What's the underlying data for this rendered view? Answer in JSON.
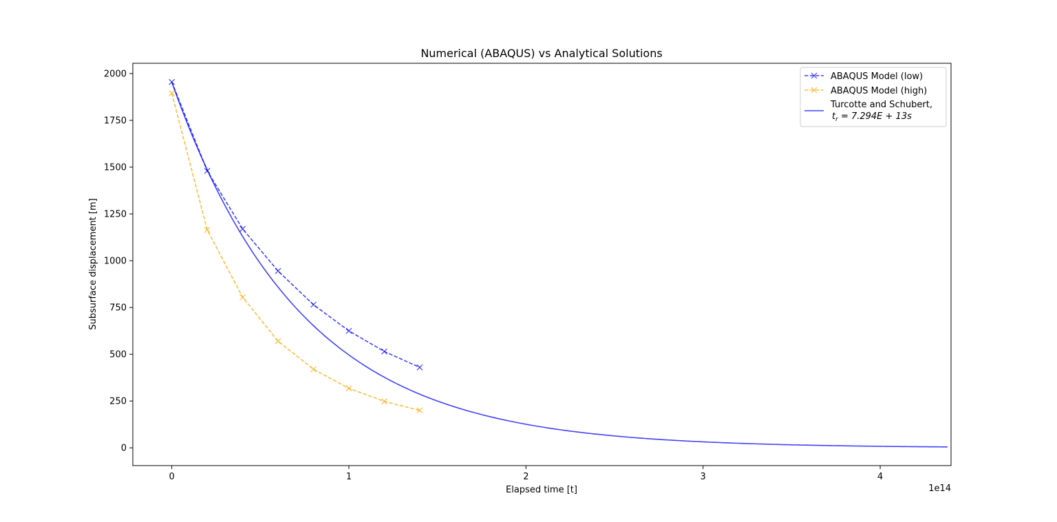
{
  "chart_data": {
    "type": "line",
    "title": "Numerical (ABAQUS) vs Analytical Solutions",
    "xlabel": "Elapsed time [t]",
    "ylabel": "Subsurface displacement [m]",
    "x_offset_label": "1e14",
    "xlim": [
      -0.22,
      4.4
    ],
    "ylim": [
      -95,
      2055
    ],
    "x_ticks": [
      0,
      1,
      2,
      3,
      4
    ],
    "x_tick_labels": [
      "0",
      "1",
      "2",
      "3",
      "4"
    ],
    "y_ticks": [
      0,
      250,
      500,
      750,
      1000,
      1250,
      1500,
      1750,
      2000
    ],
    "y_tick_labels": [
      "0",
      "250",
      "500",
      "750",
      "1000",
      "1250",
      "1500",
      "1750",
      "2000"
    ],
    "grid": false,
    "legend_position": "top-right",
    "series": [
      {
        "name": "ABAQUS Model (low)",
        "color": "#0000ff",
        "style": "dashed",
        "marker": "x",
        "x": [
          0,
          0.2,
          0.4,
          0.6,
          0.8,
          1.0,
          1.2,
          1.4
        ],
        "y": [
          1955,
          1480,
          1170,
          945,
          765,
          625,
          515,
          430
        ]
      },
      {
        "name": "ABAQUS Model (high)",
        "color": "#ffa500",
        "style": "dashed",
        "marker": "x",
        "x": [
          0,
          0.2,
          0.4,
          0.6,
          0.8,
          1.0,
          1.2,
          1.4
        ],
        "y": [
          1895,
          1165,
          805,
          570,
          420,
          318,
          248,
          200
        ]
      },
      {
        "name": "Turcotte and Schubert,",
        "name_line2_prefix": "t",
        "name_line2_sub": "r",
        "name_line2_rest": " = 7.294E + 13s",
        "color": "#0000ff",
        "style": "solid",
        "marker": "none",
        "y0": 1955,
        "tr": 0.7294,
        "x_end": 4.38
      }
    ]
  }
}
